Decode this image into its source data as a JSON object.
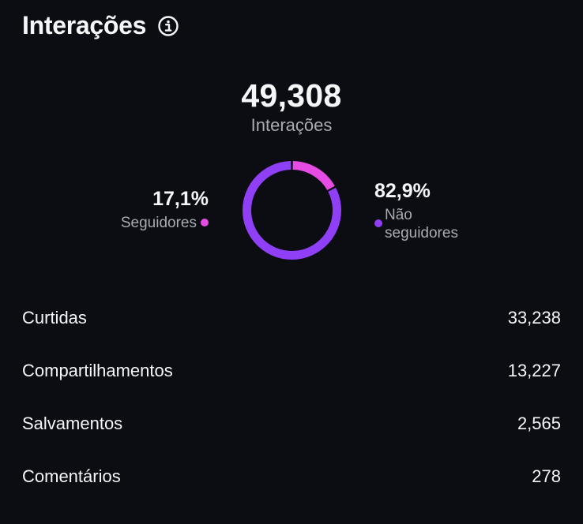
{
  "header": {
    "title": "Interações",
    "info_icon": "info-circle-icon"
  },
  "total": {
    "value": "49,308",
    "label": "Interações"
  },
  "segments": [
    {
      "percent_text": "17,1%",
      "label": "Seguidores",
      "color": "#e64be3"
    },
    {
      "percent_text": "82,9%",
      "label_line1": "Não",
      "label_line2": "seguidores",
      "color": "#8f3ff5"
    }
  ],
  "chart_data": {
    "type": "pie",
    "series": [
      {
        "name": "Seguidores",
        "value": 17.1
      },
      {
        "name": "Não seguidores",
        "value": 82.9
      }
    ],
    "colors": [
      "#e64be3",
      "#8f3ff5"
    ]
  },
  "breakdown": [
    {
      "label": "Curtidas",
      "value": "33,238"
    },
    {
      "label": "Compartilhamentos",
      "value": "13,227"
    },
    {
      "label": "Salvamentos",
      "value": "2,565"
    },
    {
      "label": "Comentários",
      "value": "278"
    }
  ]
}
